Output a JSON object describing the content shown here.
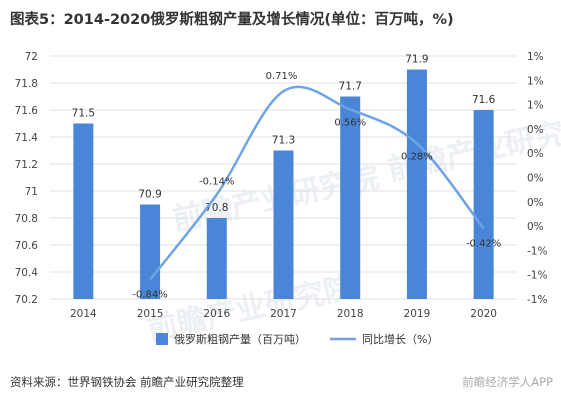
{
  "title": "图表5：2014-2020俄罗斯粗钢产量及增长情况(单位：百万吨，%)",
  "source": "资料来源：世界钢铁协会 前瞻产业研究院整理",
  "badge": "前瞻经济学人APP",
  "watermark": "前瞻产业研究院",
  "colors": {
    "bar": "#4a86d8",
    "line": "#6ea4e6",
    "grid": "#e0e0e0"
  },
  "chart_data": {
    "type": "bar",
    "categories": [
      "2014",
      "2015",
      "2016",
      "2017",
      "2018",
      "2019",
      "2020"
    ],
    "series": [
      {
        "name": "俄罗斯粗钢产量（百万吨）",
        "type": "bar",
        "axis": "left",
        "values": [
          71.5,
          70.9,
          70.8,
          71.3,
          71.7,
          71.9,
          71.6
        ],
        "labels": [
          "71.5",
          "70.9",
          "70.8",
          "71.3",
          "71.7",
          "71.9",
          "71.6"
        ]
      },
      {
        "name": "同比增长（%）",
        "type": "line",
        "axis": "right",
        "values": [
          null,
          -0.84,
          -0.14,
          0.71,
          0.56,
          0.28,
          -0.42
        ],
        "labels": [
          "",
          "-0.84%",
          "-0.14%",
          "0.71%",
          "0.56%",
          "0.28%",
          "-0.42%"
        ]
      }
    ],
    "y_left": {
      "ylim": [
        70.2,
        72
      ],
      "ticks": [
        72,
        71.8,
        71.6,
        71.4,
        71.2,
        71,
        70.8,
        70.6,
        70.4,
        70.2
      ],
      "tick_labels": [
        "72",
        "71.8",
        "71.6",
        "71.4",
        "71.2",
        "71",
        "70.8",
        "70.6",
        "70.4",
        "70.2"
      ]
    },
    "y_right": {
      "ylim": [
        -1,
        1
      ],
      "ticks": [
        1,
        0.8,
        0.6,
        0.4,
        0.2,
        0,
        -0.2,
        -0.4,
        -0.6,
        -0.8,
        -1
      ],
      "tick_labels": [
        "1%",
        "1%",
        "1%",
        "0%",
        "0%",
        "0%",
        "0%",
        "0%",
        "-1%",
        "-1%",
        "-1%"
      ]
    },
    "legend_position": "bottom",
    "grid": true
  }
}
